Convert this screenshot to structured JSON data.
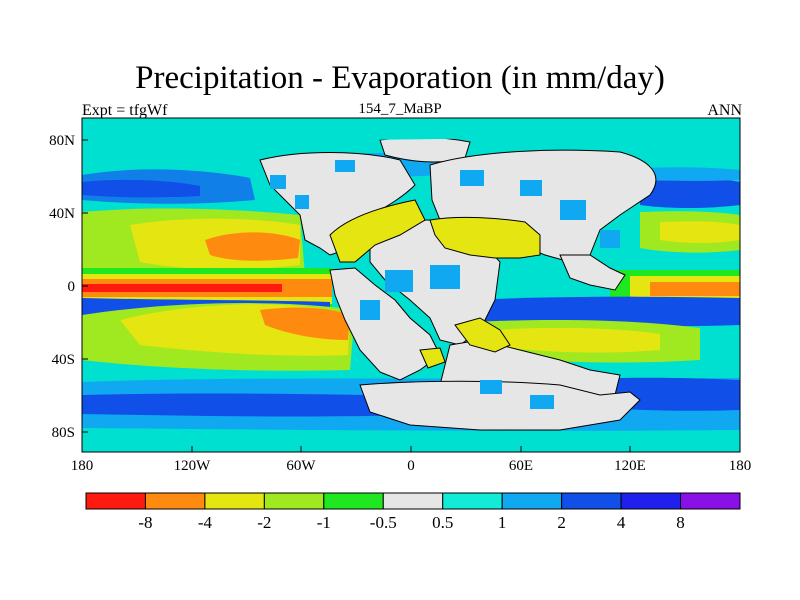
{
  "title": "Precipitation - Evaporation (in mm/day)",
  "subtitle_left": "Expt = tfgWf",
  "subtitle_center": "154_7_MaBP",
  "subtitle_right": "ANN",
  "map": {
    "projection": "cylindrical equidistant",
    "lat_ticks": [
      "80N",
      "40N",
      "0",
      "40S",
      "80S"
    ],
    "lon_ticks": [
      "180",
      "120W",
      "60W",
      "0",
      "60E",
      "120E",
      "180"
    ],
    "land_color": "#e6e6e6",
    "ocean_color": "#00e0d0",
    "coastline_color": "#000000"
  },
  "colorbar": {
    "colors": [
      "#ff1a10",
      "#ff8a10",
      "#e5e512",
      "#a0e820",
      "#20e820",
      "#e6e6e6",
      "#10ecd8",
      "#10a8f0",
      "#1050e8",
      "#2020ee",
      "#8a10e8"
    ],
    "labels": [
      "-8",
      "-4",
      "-2",
      "-1",
      "-0.5",
      "0.5",
      "1",
      "2",
      "4",
      "8"
    ]
  }
}
